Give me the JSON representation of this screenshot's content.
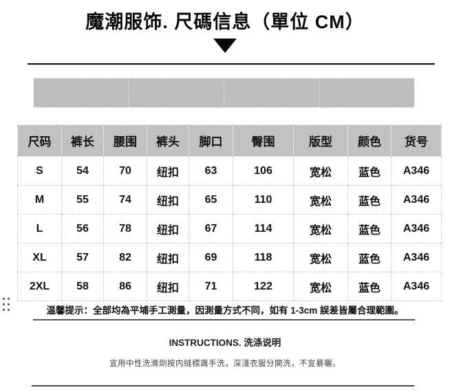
{
  "page": {
    "title": "魔潮服饰. 尺碼信息（單位 CM）"
  },
  "size_table": {
    "columns": [
      "尺码",
      "裤长",
      "腰围",
      "裤头",
      "脚口",
      "臀围",
      "版型",
      "颜色",
      "货号"
    ],
    "rows": [
      [
        "S",
        "54",
        "70",
        "纽扣",
        "63",
        "106",
        "宽松",
        "蓝色",
        "A346"
      ],
      [
        "M",
        "55",
        "74",
        "纽扣",
        "65",
        "110",
        "宽松",
        "蓝色",
        "A346"
      ],
      [
        "L",
        "56",
        "78",
        "纽扣",
        "67",
        "114",
        "宽松",
        "蓝色",
        "A346"
      ],
      [
        "XL",
        "57",
        "82",
        "纽扣",
        "69",
        "118",
        "宽松",
        "蓝色",
        "A346"
      ],
      [
        "2XL",
        "58",
        "86",
        "纽扣",
        "71",
        "122",
        "宽松",
        "蓝色",
        "A346"
      ]
    ]
  },
  "note": {
    "text": "温馨提示：全部均為平埔手工測量，因測量方式不同，如有 1-3cm 誤差皆屬合理範圍。"
  },
  "care": {
    "heading": "INSTRUCTIONS. 洗涤说明",
    "body": "宜用中性洗滌劑按内縫標識手洗，深淺衣服分開洗，不宜暴曬。"
  },
  "colors": {
    "header_bg": "#c1c1c1",
    "placeholder_bg": "#bdbdbd",
    "text": "#111111",
    "grid_dash": "#c9c9c9",
    "accent_line": "#0a0a0a"
  }
}
